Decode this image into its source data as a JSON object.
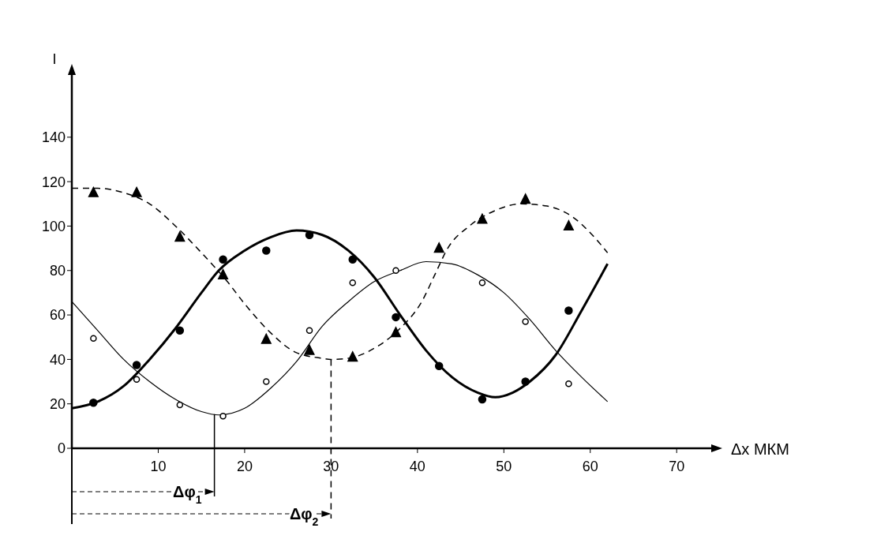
{
  "chart_data": {
    "type": "line",
    "xlabel": "Δx МКМ",
    "ylabel": "I",
    "xlim": [
      0,
      74
    ],
    "ylim": [
      0,
      168
    ],
    "xticks": [
      10,
      20,
      30,
      40,
      50,
      60,
      70
    ],
    "yticks": [
      0,
      20,
      40,
      60,
      80,
      100,
      120,
      140
    ],
    "series": [
      {
        "color": "#000000",
        "line_style": "solid",
        "x": [
          0,
          3,
          6,
          9,
          12,
          15,
          17,
          20,
          23,
          26,
          29,
          32,
          35,
          38,
          41,
          44,
          47,
          49,
          51,
          53,
          56,
          59,
          62
        ],
        "values": [
          18,
          21,
          28,
          40,
          54,
          70,
          80,
          89,
          95,
          98,
          96,
          89,
          77,
          60,
          44,
          32,
          25,
          23,
          25,
          30,
          42,
          62,
          83
        ]
      },
      {
        "color": "#000000",
        "line_style": "solid",
        "x": [
          0,
          3,
          6,
          9,
          12,
          15,
          17,
          20,
          23,
          26,
          29,
          32,
          35,
          38,
          41,
          44,
          47,
          50,
          53,
          56,
          59,
          62
        ],
        "values": [
          66,
          53,
          40,
          30,
          22,
          16.5,
          15,
          18,
          27,
          39,
          55,
          66,
          75,
          80,
          84,
          83,
          78,
          70,
          58,
          44,
          32,
          21
        ]
      },
      {
        "color": "#000000",
        "line_style": "dashed",
        "x": [
          0,
          3,
          6,
          9,
          12,
          15,
          18,
          20,
          23,
          26,
          29,
          30,
          32,
          35,
          38,
          40.5,
          42,
          43.5,
          46,
          49,
          52,
          55,
          58,
          60,
          62
        ],
        "values": [
          117,
          117,
          115,
          110,
          100,
          88,
          75,
          65,
          52,
          43,
          40.5,
          40,
          40.5,
          45,
          54,
          66,
          78,
          90,
          100,
          107,
          110,
          109,
          104,
          97,
          88
        ]
      },
      {
        "type": "scatter",
        "color": "#000000",
        "marker": "circle",
        "x": [
          2.5,
          7.5,
          12.5,
          17.5,
          22.5,
          27.5,
          32.5,
          37.5,
          42.5,
          47.5,
          52.5,
          57.5
        ],
        "values": [
          20.5,
          37.5,
          53,
          85,
          89,
          96,
          85,
          59,
          37,
          22,
          30,
          62
        ]
      },
      {
        "type": "scatter",
        "color": "#000000",
        "marker": "circle",
        "x": [
          2.5,
          7.5,
          12.5,
          17.5,
          22.5,
          27.5,
          32.5,
          37.5,
          47.5,
          52.5,
          57.5
        ],
        "values": [
          49.5,
          31,
          19.5,
          14.5,
          30,
          53,
          74.5,
          80,
          74.5,
          57,
          29
        ]
      },
      {
        "type": "scatter",
        "color": "#000000",
        "marker": "triangle",
        "x": [
          2.5,
          7.5,
          12.5,
          17.5,
          22.5,
          27.5,
          32.5,
          37.5,
          42.5,
          47.5,
          52.5,
          57.5
        ],
        "values": [
          115,
          115,
          95,
          78,
          49,
          44,
          41,
          52,
          90,
          103,
          112,
          100
        ]
      }
    ],
    "ref_lines": [
      {
        "axis": "x",
        "value": 16.5,
        "label": "Δφ$_{1}$",
        "line_style": "solid"
      },
      {
        "axis": "x",
        "value": 30,
        "label": "Δφ$_{2}$",
        "line_style": "dashed"
      }
    ]
  }
}
